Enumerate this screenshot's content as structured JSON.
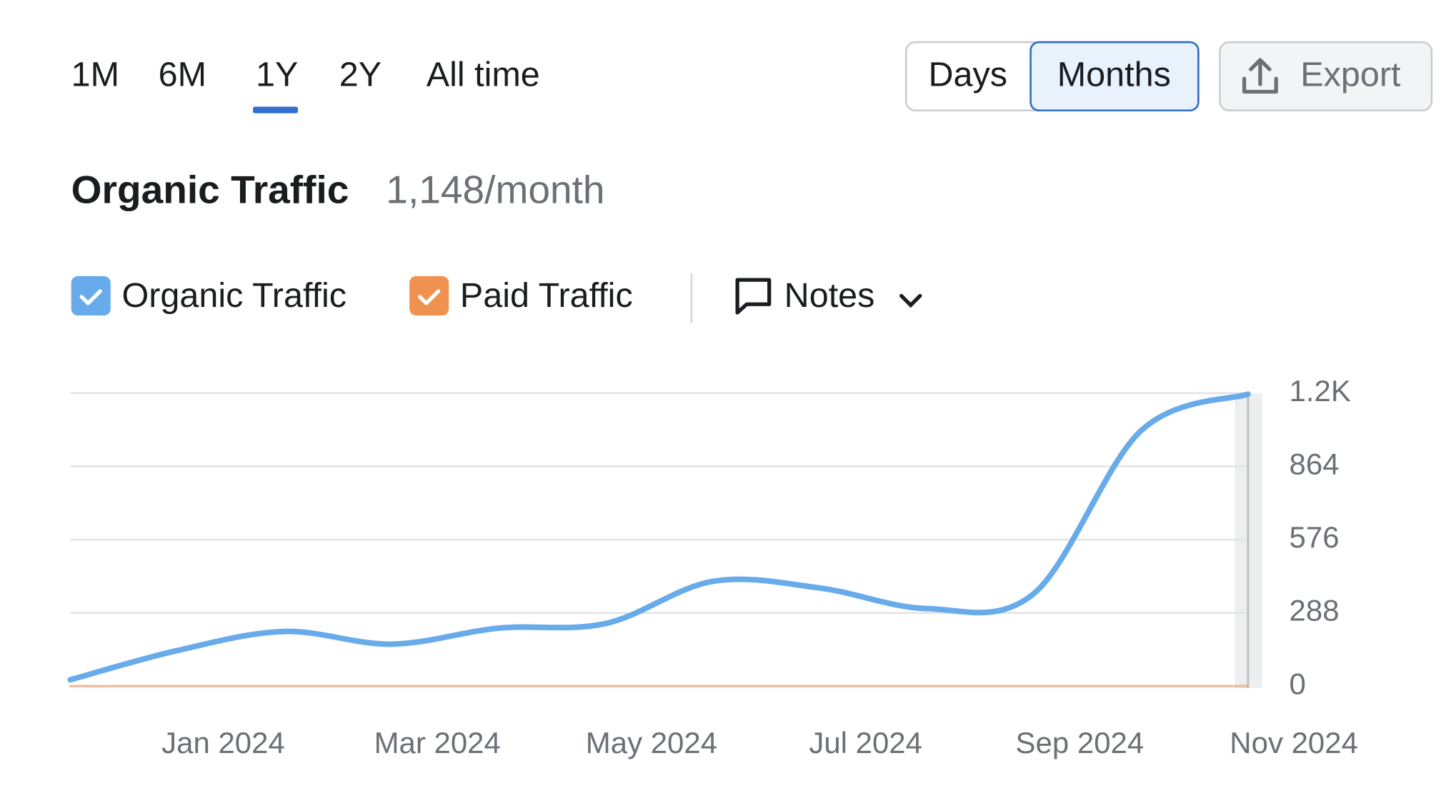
{
  "tabs": [
    "1M",
    "6M",
    "1Y",
    "2Y",
    "All time"
  ],
  "view_toggle": [
    "Days",
    "Months"
  ],
  "export": "Export",
  "heading": {
    "title": "Organic Traffic",
    "value": "1,148/month"
  },
  "notes": "Notes",
  "chart_data": {
    "type": "line",
    "categories": [
      null,
      "Jan 2024",
      null,
      "Mar 2024",
      null,
      "May 2024",
      null,
      "Jul 2024",
      null,
      "Sep 2024",
      null,
      "Nov 2024"
    ],
    "series": [
      {
        "name": "Organic Traffic",
        "color": "#68abeb",
        "values": [
          25,
          140,
          215,
          165,
          228,
          246,
          412,
          386,
          305,
          364,
          1004,
          1148
        ]
      },
      {
        "name": "Paid Traffic",
        "color": "#f0924f",
        "values": [
          0,
          0,
          0,
          0,
          0,
          0,
          0,
          0,
          0,
          0,
          0,
          0
        ]
      }
    ],
    "ylim": [
      0,
      1152
    ],
    "yticks": [
      0,
      288,
      576,
      864,
      {
        "value": 1152,
        "label": "1.2K"
      }
    ],
    "grid": true
  }
}
